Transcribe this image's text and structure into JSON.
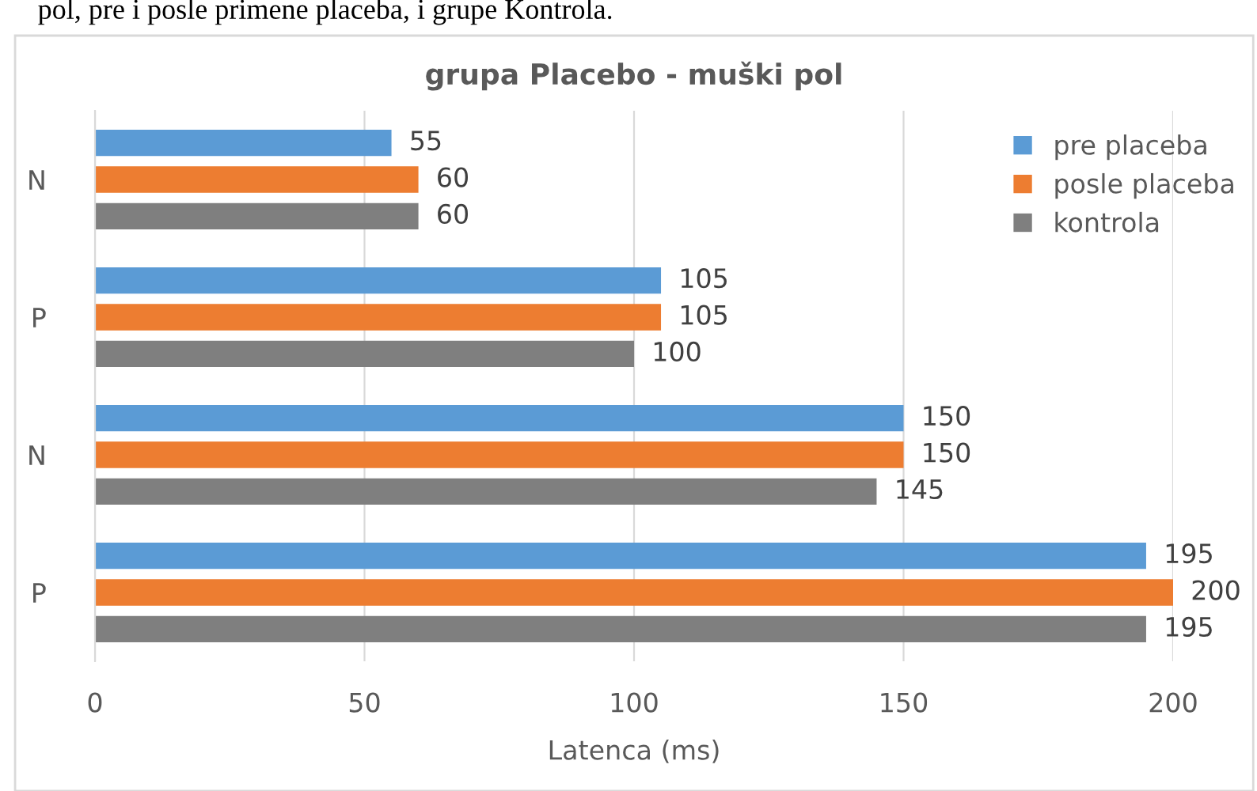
{
  "chart_data": {
    "type": "bar",
    "orientation": "horizontal",
    "title": "grupa Placebo - muški pol",
    "xlabel": "Latenca (ms)",
    "annotations": [
      "pol, pre i posle primene placeba, i grupe Kontrola."
    ],
    "categories": [
      "N",
      "P",
      "N",
      "P"
    ],
    "series": [
      {
        "name": "pre placeba",
        "color": "#5b9bd5",
        "values": [
          55,
          105,
          150,
          195
        ]
      },
      {
        "name": "posle placeba",
        "color": "#ed7d31",
        "values": [
          60,
          105,
          150,
          200
        ]
      },
      {
        "name": "kontrola",
        "color": "#7f7f7f",
        "values": [
          60,
          100,
          145,
          195
        ]
      }
    ],
    "xlim": [
      0,
      200
    ],
    "xticks": [
      0,
      50,
      100,
      150,
      200
    ],
    "grid": "x",
    "legend": "top right",
    "data_labels": true
  }
}
